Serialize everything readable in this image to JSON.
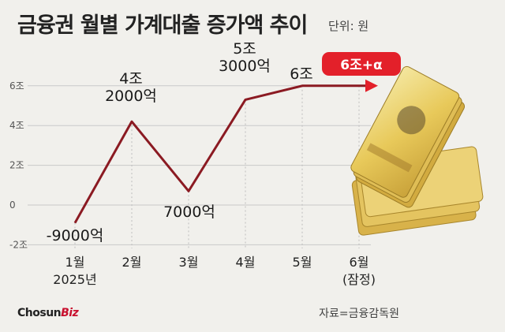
{
  "title": "금융권 월별 가계대출 증가액 추이",
  "unit_label": "단위: 원",
  "source": "자료=금융감독원",
  "brand": {
    "main": "Chosun",
    "accent": "Biz"
  },
  "colors": {
    "line": "#8b1a22",
    "gridline": "#c9c9c9",
    "dotted": "#bdbdbd",
    "callout": "#e3202a",
    "background": "#f1f0ec"
  },
  "chart_data": {
    "type": "line",
    "categories": [
      "1월",
      "2월",
      "3월",
      "4월",
      "5월",
      "6월"
    ],
    "category_sublabels": [
      "2025년",
      "",
      "",
      "",
      "",
      "(잠정)"
    ],
    "values": [
      -0.9,
      4.2,
      0.7,
      5.3,
      6.0,
      6.0
    ],
    "value_unit": "조",
    "y_ticks": [
      {
        "value": -2,
        "label": "-2조"
      },
      {
        "value": 0,
        "label": "0"
      },
      {
        "value": 2,
        "label": "2조"
      },
      {
        "value": 4,
        "label": "4조"
      },
      {
        "value": 6,
        "label": "6조"
      }
    ],
    "ylim": [
      -2,
      6
    ],
    "data_labels": [
      [
        "-9000억"
      ],
      [
        "4조",
        "2000억"
      ],
      [
        "7000억"
      ],
      [
        "5조",
        "3000억"
      ],
      [
        "6조"
      ],
      [
        "6조+α"
      ]
    ],
    "grid": "horizontal",
    "last_point_projected": true
  }
}
